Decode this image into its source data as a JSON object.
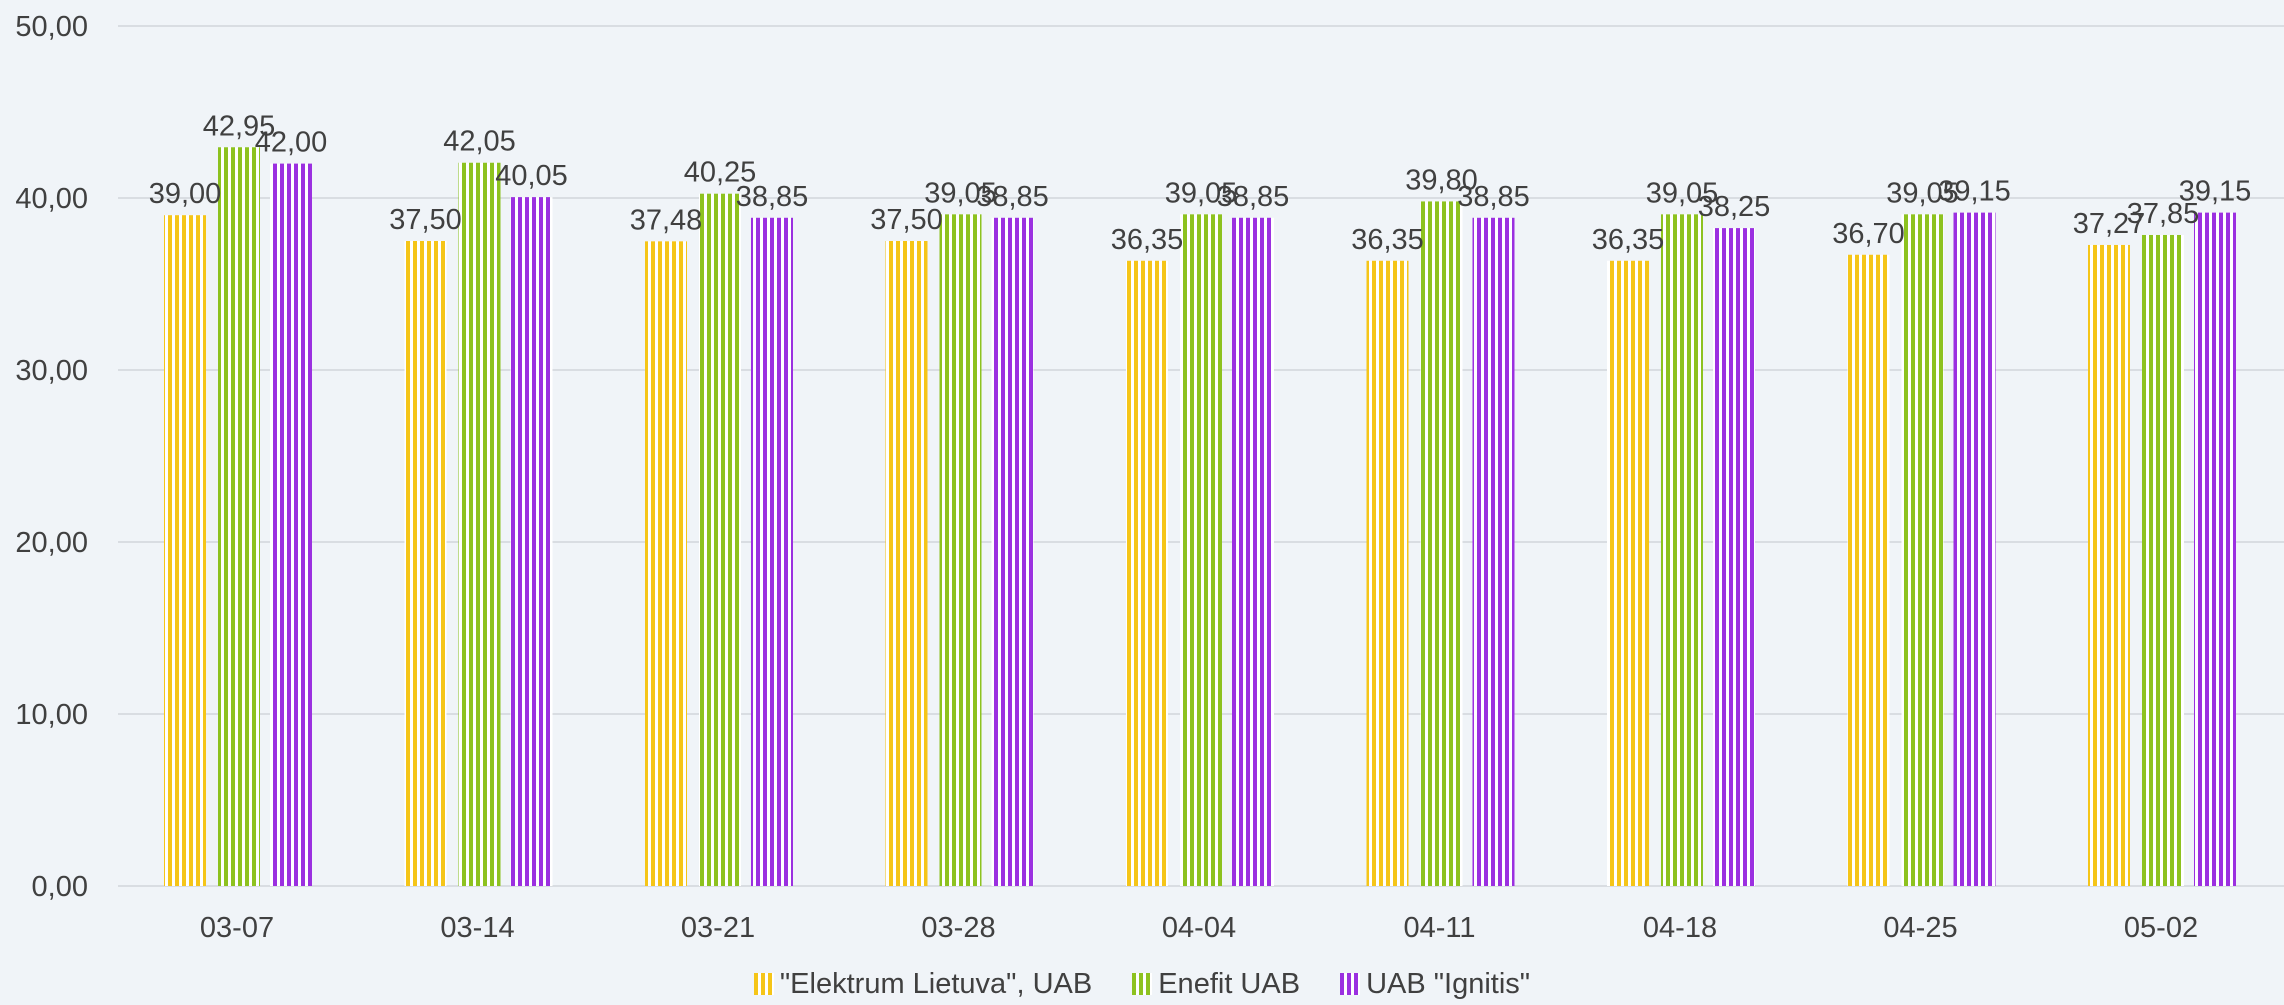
{
  "colors": {
    "background": "#f0f4f8",
    "grid": "#d9dde2",
    "text": "#404040"
  },
  "chart_data": {
    "type": "bar",
    "title": "",
    "xlabel": "",
    "ylabel": "",
    "ylim": [
      0,
      50
    ],
    "yticks": [
      "0,00",
      "10,00",
      "20,00",
      "30,00",
      "40,00",
      "50,00"
    ],
    "grid": true,
    "legend_position": "bottom",
    "categories": [
      "03-07",
      "03-14",
      "03-21",
      "03-28",
      "04-04",
      "04-11",
      "04-18",
      "04-25",
      "05-02"
    ],
    "series": [
      {
        "name": "\"Elektrum Lietuva\", UAB",
        "color": "#f5c518",
        "values": [
          39.0,
          37.5,
          37.48,
          37.5,
          36.35,
          36.35,
          36.35,
          36.7,
          37.27
        ],
        "labels": [
          "39,00",
          "37,50",
          "37,48",
          "37,50",
          "36,35",
          "36,35",
          "36,35",
          "36,70",
          "37,27"
        ]
      },
      {
        "name": "Enefit UAB",
        "color": "#8dc21f",
        "values": [
          42.95,
          42.05,
          40.25,
          39.05,
          39.05,
          39.8,
          39.05,
          39.05,
          37.85
        ],
        "labels": [
          "42,95",
          "42,05",
          "40,25",
          "39,05",
          "39,05",
          "39,80",
          "39,05",
          "39,05",
          "37,85"
        ]
      },
      {
        "name": "UAB \"Ignitis\"",
        "color": "#9b30e0",
        "values": [
          42.0,
          40.05,
          38.85,
          38.85,
          38.85,
          38.85,
          38.25,
          39.15,
          39.15
        ],
        "labels": [
          "42,00",
          "40,05",
          "38,85",
          "38,85",
          "38,85",
          "38,85",
          "38,25",
          "39,15",
          "39,15"
        ]
      }
    ]
  }
}
